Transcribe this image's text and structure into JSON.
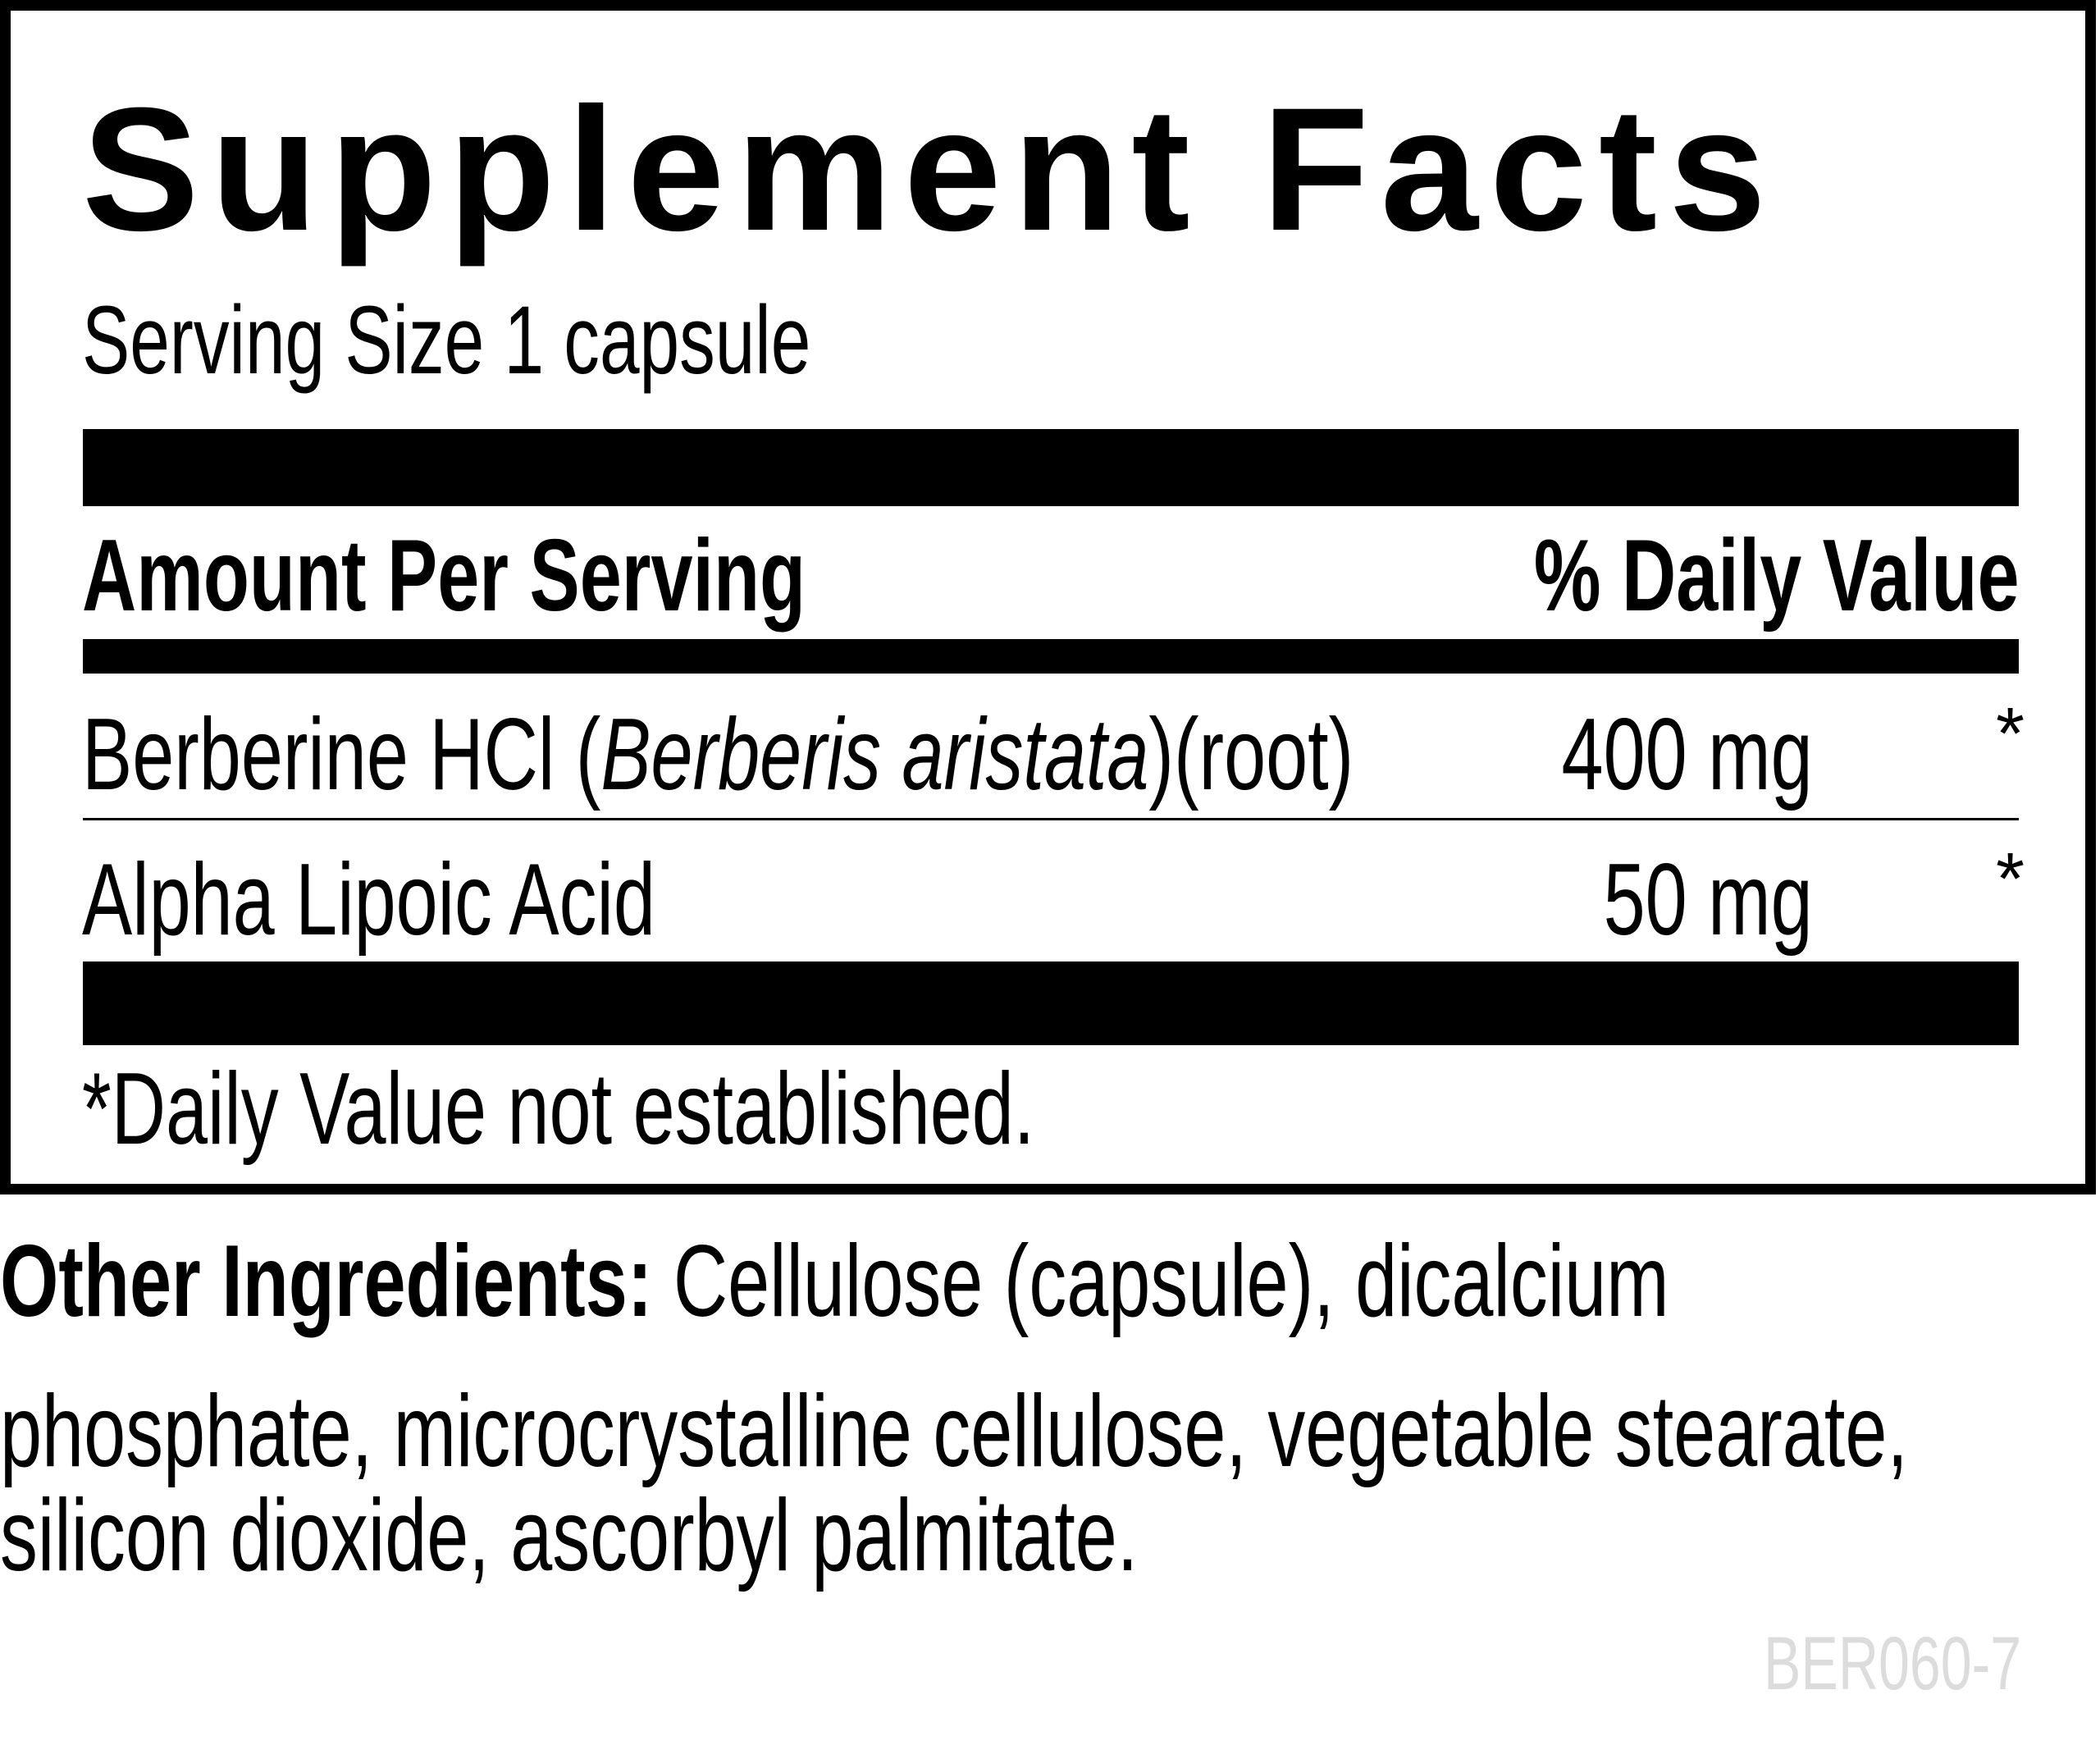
{
  "title": "Supplement Facts",
  "serving_size": "Serving Size 1 capsule",
  "header": {
    "amount": "Amount Per Serving",
    "daily_value": "% Daily Value"
  },
  "rows": [
    {
      "name_pre": "Berberine HCl (",
      "name_italic": "Berberis aristata",
      "name_post": ")(root)",
      "amount": "400 mg",
      "dv": "*"
    },
    {
      "name_pre": "Alpha Lipoic Acid",
      "name_italic": "",
      "name_post": "",
      "amount": "50 mg",
      "dv": "*"
    }
  ],
  "footnote": "*Daily Value not established.",
  "other_ingredients": {
    "label": "Other Ingredients:",
    "lines": [
      " Cellulose (capsule), dicalcium",
      "phosphate, microcrystalline cellulose, vegetable stearate,",
      "silicon dioxide, ascorbyl palmitate."
    ]
  },
  "product_code": "BER060-7"
}
